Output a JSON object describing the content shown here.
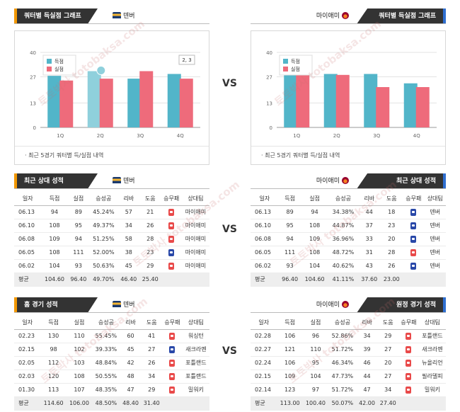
{
  "sections": {
    "quarter_title": "쿼터별 득실점 그래프",
    "recent_title": "최근 상대 성적",
    "home_title": "홈 경기 성적",
    "away_title": "원정 경기 성적"
  },
  "teams": {
    "denver": "덴버",
    "miami": "마이애미"
  },
  "vs_label": "VS",
  "watermark": "토토박사 totobaksa.com",
  "charts": {
    "note": "최근 5경기 쿼터별 득/실점 내역",
    "legend": {
      "scored": "득점",
      "allowed": "실점"
    },
    "colors": {
      "scored": "#52b5c9",
      "allowed": "#ee6b7b",
      "highlight": "#8fd0dc"
    },
    "tooltip": "2, 3",
    "yticks": [
      "40",
      "27",
      "13",
      "0"
    ]
  },
  "chart_data": [
    {
      "type": "bar",
      "team": "덴버",
      "categories": [
        "1Q",
        "2Q",
        "3Q",
        "4Q"
      ],
      "ylim": [
        0,
        40
      ],
      "series": [
        {
          "name": "득점",
          "values": [
            27.5,
            30,
            26,
            28.5
          ]
        },
        {
          "name": "실점",
          "values": [
            25,
            26,
            30,
            26
          ]
        }
      ]
    },
    {
      "type": "bar",
      "team": "마이애미",
      "categories": [
        "1Q",
        "2Q",
        "3Q",
        "4Q"
      ],
      "ylim": [
        0,
        40
      ],
      "series": [
        {
          "name": "득점",
          "values": [
            30,
            28.5,
            28.5,
            23.5
          ]
        },
        {
          "name": "실점",
          "values": [
            28.5,
            28,
            21.5,
            21.5
          ]
        }
      ]
    }
  ],
  "table_headers": [
    "일자",
    "득점",
    "실점",
    "승성공",
    "리바",
    "도움",
    "승무패",
    "상대팀"
  ],
  "tables": {
    "den_recent": {
      "rows": [
        [
          "06.13",
          "94",
          "89",
          "45.24%",
          "57",
          "21",
          "W",
          "마이애미"
        ],
        [
          "06.10",
          "108",
          "95",
          "49.37%",
          "34",
          "26",
          "W",
          "마이애미"
        ],
        [
          "06.08",
          "109",
          "94",
          "51.25%",
          "58",
          "28",
          "W",
          "마이애미"
        ],
        [
          "06.05",
          "108",
          "111",
          "52.00%",
          "38",
          "23",
          "L",
          "마이애미"
        ],
        [
          "06.02",
          "104",
          "93",
          "50.63%",
          "45",
          "29",
          "W",
          "마이애미"
        ]
      ],
      "avg": [
        "평균",
        "104.60",
        "96.40",
        "49.70%",
        "46.40",
        "25.40"
      ]
    },
    "mia_recent": {
      "rows": [
        [
          "06.13",
          "89",
          "94",
          "34.38%",
          "44",
          "18",
          "L",
          "덴버"
        ],
        [
          "06.10",
          "95",
          "108",
          "44.87%",
          "37",
          "23",
          "L",
          "덴버"
        ],
        [
          "06.08",
          "94",
          "109",
          "36.96%",
          "33",
          "20",
          "L",
          "덴버"
        ],
        [
          "06.05",
          "111",
          "108",
          "48.72%",
          "31",
          "28",
          "W",
          "덴버"
        ],
        [
          "06.02",
          "93",
          "104",
          "40.62%",
          "43",
          "26",
          "L",
          "덴버"
        ]
      ],
      "avg": [
        "평균",
        "96.40",
        "104.60",
        "41.11%",
        "37.60",
        "23.00"
      ]
    },
    "den_home": {
      "rows": [
        [
          "02.23",
          "130",
          "110",
          "55.45%",
          "60",
          "41",
          "W",
          "워싱턴"
        ],
        [
          "02.15",
          "98",
          "102",
          "39.33%",
          "45",
          "27",
          "L",
          "새크라멘"
        ],
        [
          "02.05",
          "112",
          "103",
          "48.84%",
          "42",
          "26",
          "W",
          "포틀랜드"
        ],
        [
          "02.03",
          "120",
          "108",
          "50.55%",
          "48",
          "34",
          "W",
          "포틀랜드"
        ],
        [
          "01.30",
          "113",
          "107",
          "48.35%",
          "47",
          "29",
          "W",
          "밀워키"
        ]
      ],
      "avg": [
        "평균",
        "114.60",
        "106.00",
        "48.50%",
        "48.40",
        "31.40"
      ]
    },
    "mia_away": {
      "rows": [
        [
          "02.28",
          "106",
          "96",
          "52.86%",
          "34",
          "29",
          "W",
          "포틀랜드"
        ],
        [
          "02.27",
          "121",
          "110",
          "51.72%",
          "39",
          "27",
          "W",
          "새크라멘"
        ],
        [
          "02.24",
          "106",
          "95",
          "46.34%",
          "46",
          "20",
          "W",
          "뉴올리언"
        ],
        [
          "02.15",
          "109",
          "104",
          "47.73%",
          "44",
          "27",
          "W",
          "필라델피"
        ],
        [
          "02.14",
          "123",
          "97",
          "51.72%",
          "47",
          "34",
          "W",
          "밀워키"
        ]
      ],
      "avg": [
        "평균",
        "113.00",
        "100.40",
        "50.07%",
        "42.00",
        "27.40"
      ]
    }
  }
}
